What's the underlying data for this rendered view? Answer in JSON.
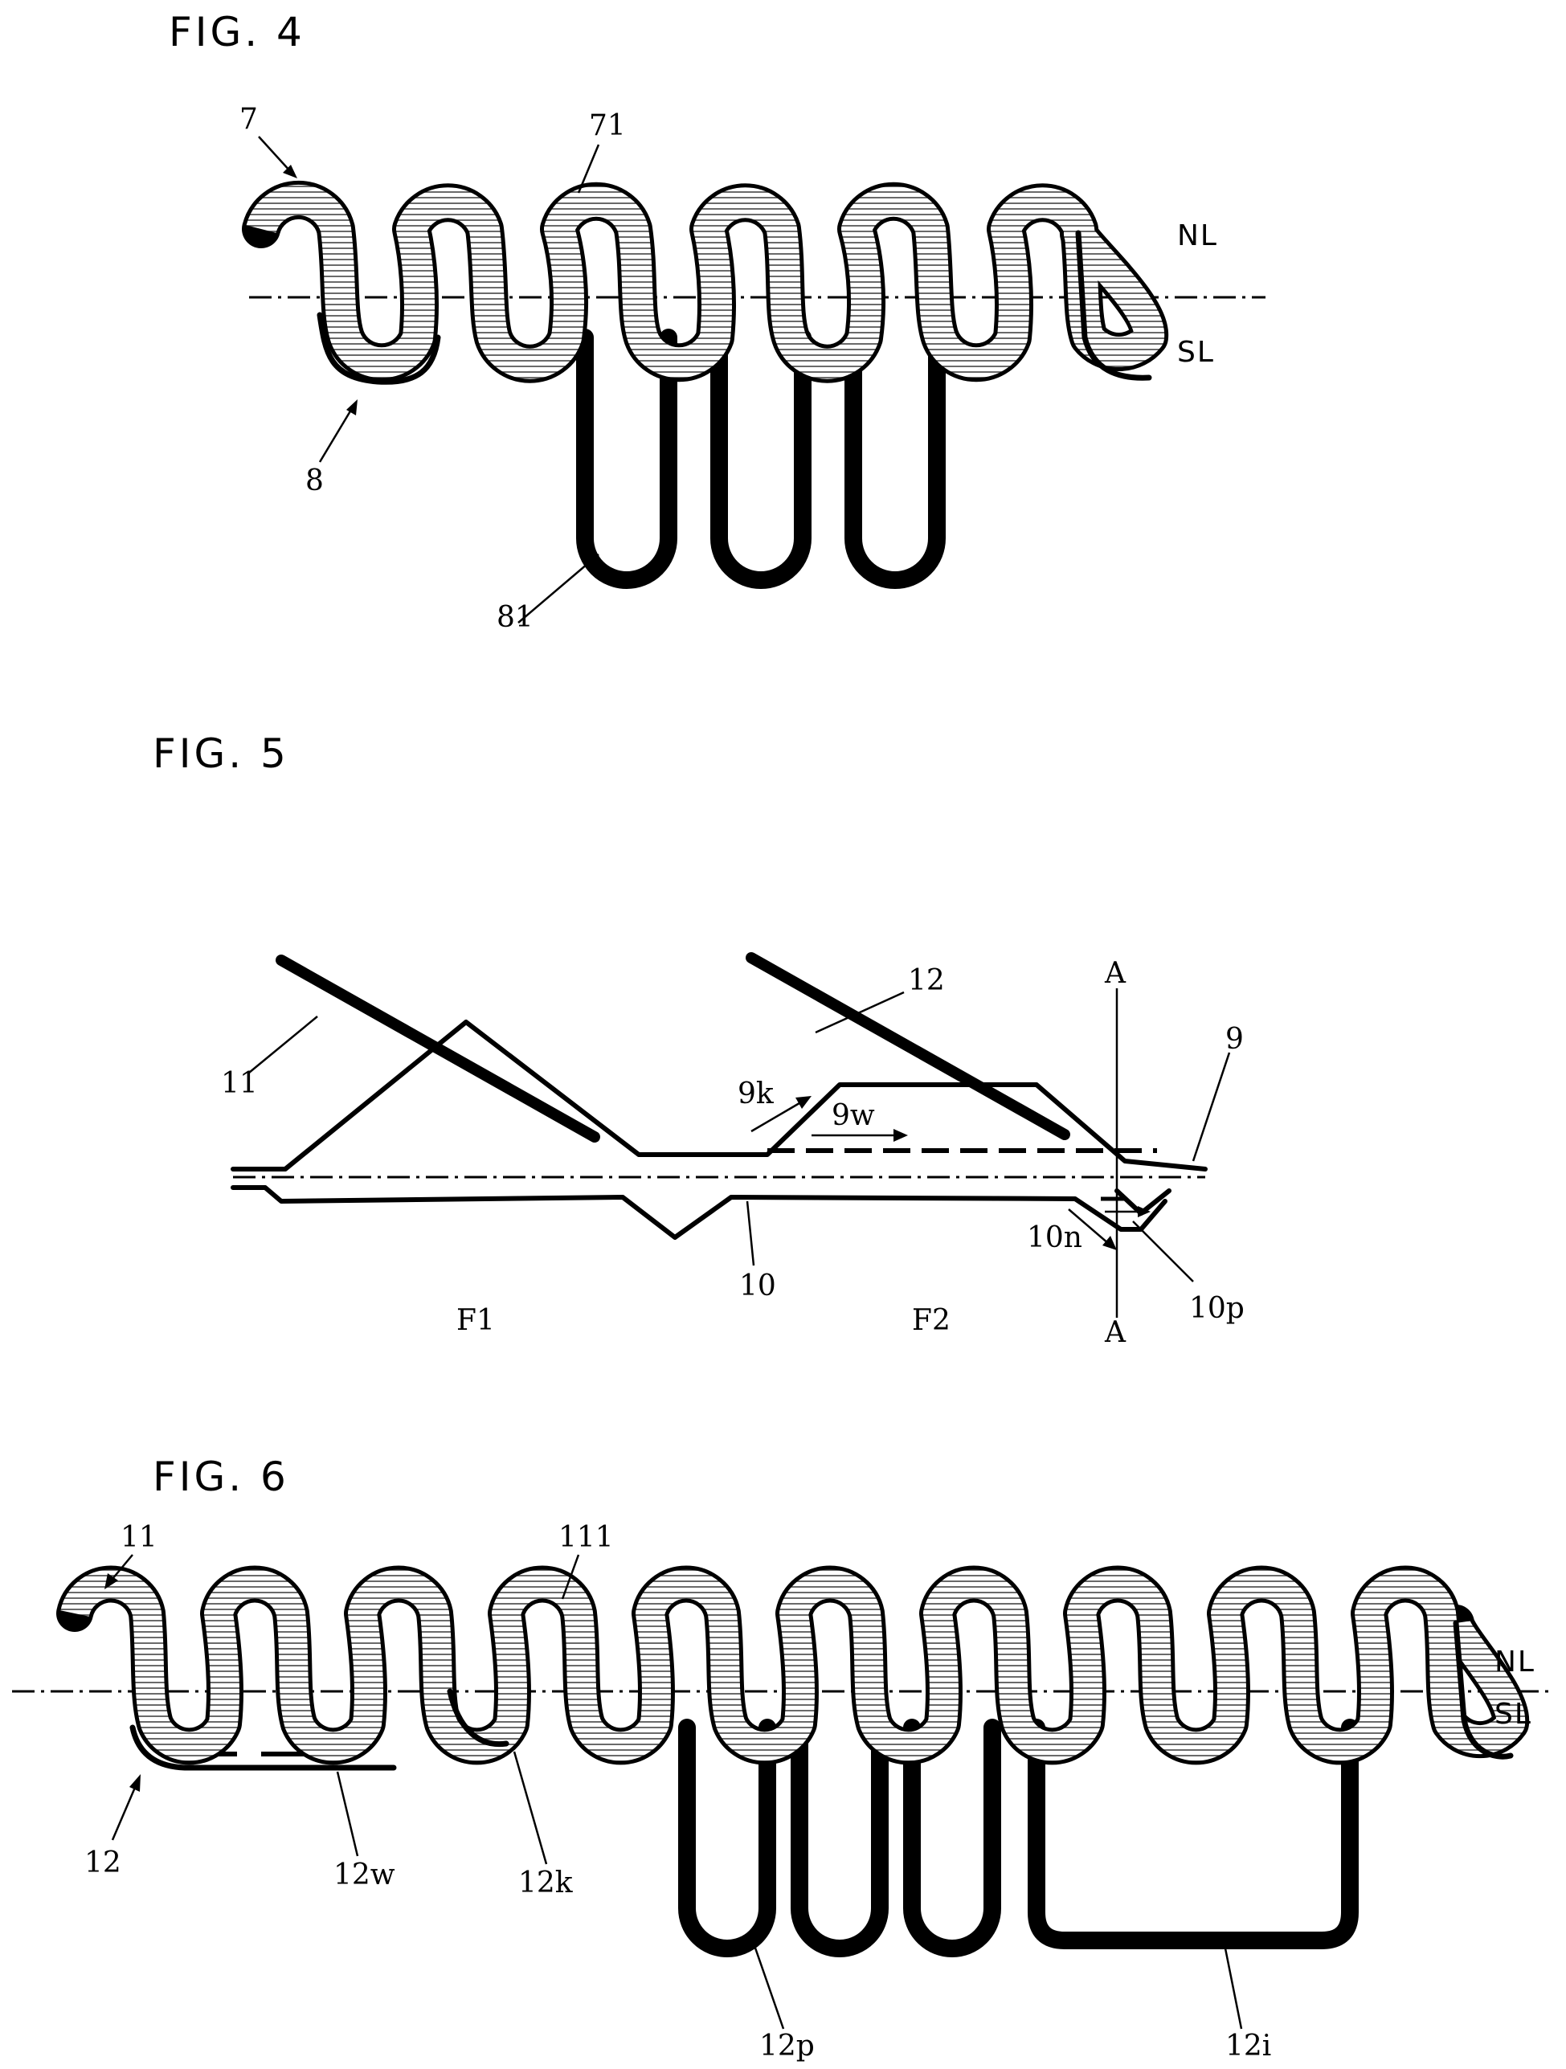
{
  "figures": {
    "fig4": {
      "title": "FIG. 4",
      "labels": {
        "fabric": "7",
        "top_loop": "71",
        "bottom_yarn": "8",
        "long_loop": "81",
        "upper_zone": "NL",
        "lower_zone": "SL"
      }
    },
    "fig5": {
      "title": "FIG. 5",
      "labels": {
        "needle_left": "11",
        "needle_right": "12",
        "upper_bed": "9",
        "lower_bed": "10",
        "raise": "9k",
        "advance": "9w",
        "lower_move": "10n",
        "push": "10p",
        "section_top": "A",
        "section_bottom": "A",
        "zone_left": "F1",
        "zone_right": "F2"
      }
    },
    "fig6": {
      "title": "FIG. 6",
      "labels": {
        "fabric": "11",
        "top_loop": "111",
        "bottom_yarn": "12",
        "float": "12w",
        "tuck": "12k",
        "pile": "12p",
        "wide_loop": "12i",
        "upper_zone": "NL",
        "lower_zone": "SL"
      }
    }
  },
  "colors": {
    "ink": "#000000",
    "paper": "#ffffff",
    "hatch": "#444444"
  }
}
